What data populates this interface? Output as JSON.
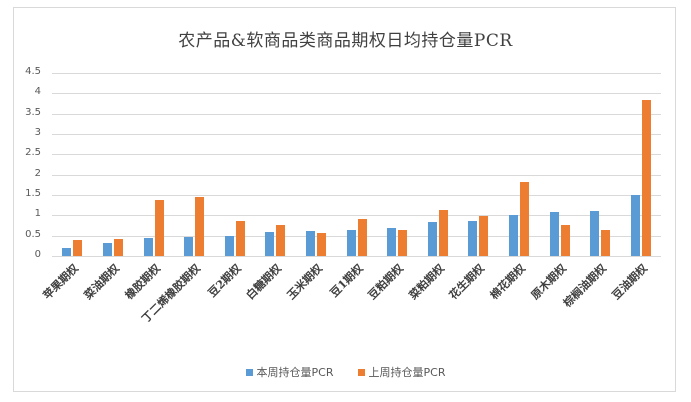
{
  "chart_data": {
    "type": "bar",
    "title": "农产品&软商品类商品期权日均持仓量PCR",
    "xlabel": "",
    "ylabel": "",
    "ylim": [
      0,
      4.5
    ],
    "yticks": [
      "0",
      "0.5",
      "1",
      "1.5",
      "2",
      "2.5",
      "3",
      "3.5",
      "4",
      "4.5"
    ],
    "grid": true,
    "legend_position": "bottom",
    "categories": [
      "苹果期权",
      "菜油期权",
      "橡胶期权",
      "丁二烯橡胶期权",
      "豆2期权",
      "白糖期权",
      "玉米期权",
      "豆1期权",
      "豆粕期权",
      "菜粕期权",
      "花生期权",
      "棉花期权",
      "原木期权",
      "棕榈油期权",
      "豆油期权"
    ],
    "series": [
      {
        "name": "本周持仓量PCR",
        "color": "#5B9BD5",
        "values": [
          0.19,
          0.31,
          0.45,
          0.47,
          0.5,
          0.58,
          0.61,
          0.65,
          0.7,
          0.84,
          0.85,
          1.01,
          1.09,
          1.11,
          1.51
        ]
      },
      {
        "name": "上周持仓量PCR",
        "color": "#ED7D31",
        "values": [
          0.39,
          0.41,
          1.38,
          1.45,
          0.85,
          0.76,
          0.56,
          0.9,
          0.63,
          1.14,
          0.99,
          1.82,
          0.76,
          0.65,
          3.83
        ]
      }
    ]
  }
}
